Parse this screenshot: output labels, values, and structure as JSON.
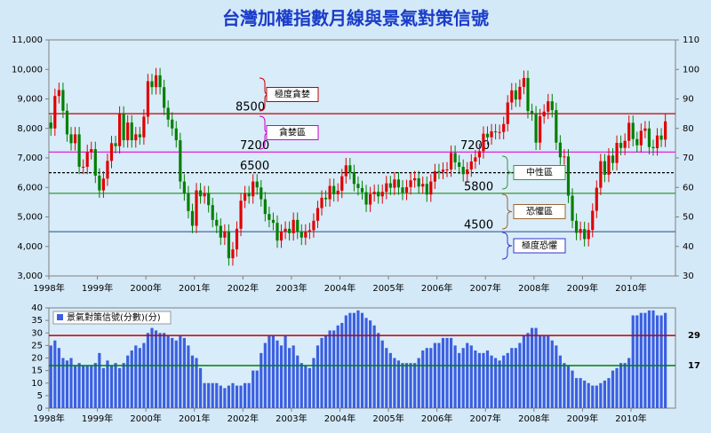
{
  "chart_data": [
    {
      "type": "candlestick",
      "title": "台灣加權指數月線與景氣對策信號",
      "open": [
        8200,
        8000,
        9100,
        9300,
        8600,
        7800,
        7500,
        7800,
        6700,
        6700,
        7200,
        7300,
        6400,
        5900,
        6300,
        6900,
        7500,
        7400,
        8500,
        7600,
        8200,
        7600,
        7800,
        7700,
        8400,
        9600,
        9400,
        9800,
        9400,
        8700,
        8300,
        8000,
        7600,
        6200,
        5800,
        5200,
        4700,
        5900,
        5700,
        5800,
        5400,
        4900,
        4700,
        4300,
        4500,
        3600,
        3900,
        4600,
        5550,
        5800,
        5700,
        6200,
        6000,
        5600,
        5100,
        4900,
        4800,
        4200,
        4500,
        4600,
        4450,
        4900,
        4500,
        4300,
        4500,
        4550,
        4870,
        5300,
        5650,
        5600,
        6050,
        5770,
        5890,
        6380,
        6750,
        6520,
        6120,
        5980,
        5840,
        5420,
        5770,
        5850,
        5700,
        5850,
        6140,
        5990,
        6270,
        6000,
        5820,
        6010,
        6240,
        6310,
        6030,
        6120,
        5760,
        6200,
        6550,
        6530,
        6600,
        6610,
        7170,
        6850,
        6700,
        6450,
        6610,
        6880,
        7020,
        7230,
        7820,
        7700,
        7900,
        7880,
        7880,
        8150,
        8880,
        9290,
        8980,
        9410,
        9710,
        8590,
        8510,
        7520,
        8410,
        8570,
        8920,
        8620,
        7520,
        7020,
        7050,
        5720,
        4870,
        4460,
        4590,
        4250,
        4560,
        5210,
        5990,
        6890,
        6430,
        7080,
        6830,
        7510,
        7340,
        7580,
        8190,
        7640,
        7430,
        7920,
        8000,
        7370,
        7330,
        7760,
        7620
      ],
      "high": [
        8450,
        9350,
        9550,
        9550,
        8850,
        8050,
        8050,
        8050,
        6950,
        7450,
        7550,
        7550,
        6650,
        6550,
        7150,
        7750,
        7750,
        8750,
        8750,
        8450,
        8450,
        8050,
        8050,
        8650,
        9850,
        9850,
        10050,
        10050,
        9650,
        8950,
        8550,
        8250,
        7850,
        6450,
        6050,
        5450,
        6150,
        6150,
        6050,
        6050,
        5650,
        5150,
        4950,
        4750,
        4750,
        4150,
        4850,
        5800,
        6050,
        6050,
        6450,
        6450,
        6250,
        5850,
        5350,
        5150,
        5050,
        4750,
        4850,
        4850,
        5150,
        5150,
        4750,
        4750,
        4800,
        5120,
        5550,
        5900,
        5900,
        6300,
        6300,
        6140,
        6630,
        7000,
        7000,
        6770,
        6370,
        6230,
        6090,
        6020,
        6100,
        6100,
        6100,
        6390,
        6390,
        6520,
        6520,
        6250,
        6260,
        6490,
        6560,
        6560,
        6370,
        6370,
        6450,
        6800,
        6800,
        6850,
        6860,
        7420,
        7420,
        7100,
        6950,
        6860,
        7130,
        7270,
        7480,
        8070,
        8070,
        8150,
        8150,
        8130,
        8400,
        9130,
        9540,
        9540,
        9660,
        9960,
        9960,
        8840,
        8760,
        8660,
        8820,
        9170,
        9170,
        8870,
        7770,
        7300,
        7300,
        5970,
        5120,
        4840,
        4840,
        4810,
        5460,
        6240,
        7140,
        7140,
        7330,
        7330,
        7760,
        7760,
        7830,
        8440,
        8440,
        7890,
        8170,
        8250,
        8250,
        7620,
        8010,
        8010,
        8490
      ],
      "low": [
        7750,
        7750,
        8850,
        8350,
        7550,
        7250,
        7250,
        6450,
        6450,
        6450,
        6950,
        6150,
        5650,
        5650,
        6050,
        6650,
        7150,
        7150,
        7350,
        7350,
        7350,
        7350,
        7450,
        7450,
        8150,
        9150,
        9150,
        9150,
        8450,
        8050,
        7750,
        7350,
        5950,
        5550,
        4950,
        4450,
        4450,
        5450,
        5450,
        5150,
        4650,
        4450,
        4050,
        4050,
        3350,
        3350,
        3650,
        4350,
        5300,
        5450,
        5450,
        5750,
        5350,
        4850,
        4650,
        4550,
        3950,
        3950,
        4250,
        4200,
        4200,
        4250,
        4050,
        4050,
        4250,
        4300,
        4620,
        5050,
        5350,
        5350,
        5520,
        5520,
        5640,
        6130,
        6270,
        5870,
        5730,
        5590,
        5170,
        5170,
        5520,
        5450,
        5450,
        5600,
        5740,
        5740,
        5750,
        5570,
        5570,
        5760,
        5990,
        5780,
        5780,
        5510,
        5510,
        5950,
        6280,
        6280,
        6350,
        6360,
        6600,
        6450,
        6200,
        6200,
        6360,
        6630,
        6770,
        6980,
        7450,
        7450,
        7630,
        7630,
        7630,
        7900,
        8630,
        8730,
        8730,
        9160,
        8340,
        8260,
        7270,
        7270,
        8160,
        8320,
        8370,
        7270,
        6770,
        6770,
        5470,
        4620,
        4210,
        4210,
        4000,
        4000,
        4310,
        4960,
        5740,
        6180,
        6180,
        6580,
        6580,
        7090,
        7090,
        7330,
        7390,
        7180,
        7180,
        7670,
        7120,
        7080,
        7080,
        7370,
        7370
      ],
      "close": [
        8000,
        9100,
        9300,
        8600,
        7800,
        7500,
        7800,
        6700,
        6700,
        7200,
        7300,
        6400,
        5900,
        6300,
        6900,
        7500,
        7400,
        8500,
        7600,
        8200,
        7600,
        7800,
        7700,
        8400,
        9600,
        9400,
        9800,
        9400,
        8700,
        8300,
        8000,
        7600,
        6200,
        5800,
        5200,
        4700,
        5900,
        5700,
        5800,
        5400,
        4900,
        4700,
        4300,
        4500,
        3600,
        3900,
        4600,
        5550,
        5800,
        5700,
        6200,
        6000,
        5600,
        5100,
        4900,
        4800,
        4200,
        4500,
        4600,
        4450,
        4900,
        4500,
        4300,
        4500,
        4550,
        4870,
        5300,
        5650,
        5600,
        6050,
        5770,
        5890,
        6380,
        6750,
        6520,
        6120,
        5980,
        5840,
        5420,
        5770,
        5850,
        5700,
        5850,
        6140,
        5990,
        6270,
        6000,
        5820,
        6010,
        6240,
        6310,
        6030,
        6120,
        5760,
        6200,
        6550,
        6530,
        6600,
        6610,
        7170,
        6850,
        6700,
        6450,
        6610,
        6880,
        7020,
        7230,
        7820,
        7700,
        7900,
        7880,
        7880,
        8150,
        8880,
        9290,
        8980,
        9410,
        9710,
        8590,
        8510,
        7520,
        8410,
        8570,
        8920,
        8620,
        7520,
        7020,
        7050,
        5720,
        4870,
        4460,
        4590,
        4250,
        4560,
        5210,
        5990,
        6890,
        6430,
        7080,
        6830,
        7510,
        7340,
        7580,
        8190,
        7640,
        7430,
        7920,
        8000,
        7370,
        7330,
        7760,
        7620,
        8240
      ],
      "up_color": "#e00000",
      "down_color": "#008000",
      "xlim": [
        0,
        155
      ],
      "xticks": [
        {
          "value": 0,
          "label": "1998年"
        },
        {
          "value": 12,
          "label": "1999年"
        },
        {
          "value": 24,
          "label": "2000年"
        },
        {
          "value": 36,
          "label": "2001年"
        },
        {
          "value": 48,
          "label": "2002年"
        },
        {
          "value": 60,
          "label": "2003年"
        },
        {
          "value": 72,
          "label": "2004年"
        },
        {
          "value": 84,
          "label": "2005年"
        },
        {
          "value": 96,
          "label": "2006年"
        },
        {
          "value": 108,
          "label": "2007年"
        },
        {
          "value": 120,
          "label": "2008年"
        },
        {
          "value": 132,
          "label": "2009年"
        },
        {
          "value": 144,
          "label": "2010年"
        }
      ],
      "ylim": [
        3000,
        11000
      ],
      "yticks": [
        {
          "value": 3000,
          "label": "3,000"
        },
        {
          "value": 4000,
          "label": "4,000"
        },
        {
          "value": 5000,
          "label": "5,000"
        },
        {
          "value": 6000,
          "label": "6,000"
        },
        {
          "value": 7000,
          "label": "7,000"
        },
        {
          "value": 8000,
          "label": "8,000"
        },
        {
          "value": 9000,
          "label": "9,000"
        },
        {
          "value": 10000,
          "label": "10,000"
        },
        {
          "value": 11000,
          "label": "11,000"
        }
      ],
      "y2lim": [
        30,
        110
      ],
      "y2ticks": [
        30,
        40,
        50,
        60,
        70,
        80,
        90,
        100,
        110
      ],
      "reference_lines": [
        {
          "value": 8500,
          "color": "#c00000",
          "style": "solid"
        },
        {
          "value": 7200,
          "color": "#e020e0",
          "style": "solid"
        },
        {
          "value": 6500,
          "color": "#000000",
          "style": "dashed"
        },
        {
          "value": 5800,
          "color": "#339933",
          "style": "solid"
        },
        {
          "value": 4500,
          "color": "#4a6a9a",
          "style": "solid"
        }
      ],
      "zones": [
        {
          "label": "極度貪婪",
          "color": "#c00000"
        },
        {
          "label": "貪婪區",
          "color": "#cc00cc"
        },
        {
          "label": "中性區",
          "color": "#339933"
        },
        {
          "label": "恐懼區",
          "color": "#996633"
        },
        {
          "label": "極度恐懼",
          "color": "#3333cc"
        }
      ]
    },
    {
      "type": "bar",
      "series": [
        {
          "name": "景氣對策信號(分數)(分)",
          "color": "#3b5fe0",
          "values": [
            25,
            27,
            24,
            20,
            19,
            20,
            17,
            18,
            17,
            17,
            17,
            18,
            22,
            16,
            19,
            17,
            18,
            16,
            18,
            21,
            23,
            25,
            24,
            26,
            30,
            32,
            31,
            30,
            30,
            29,
            28,
            27,
            29,
            28,
            25,
            21,
            20,
            16,
            10,
            10,
            10,
            10,
            9,
            8,
            9,
            10,
            9,
            9,
            10,
            10,
            15,
            15,
            22,
            26,
            29,
            29,
            27,
            25,
            29,
            24,
            25,
            21,
            18,
            17,
            16,
            20,
            25,
            28,
            29,
            31,
            31,
            33,
            34,
            37,
            38,
            38,
            39,
            38,
            36,
            35,
            33,
            30,
            27,
            24,
            22,
            20,
            19,
            18,
            18,
            18,
            18,
            20,
            23,
            24,
            24,
            26,
            26,
            28,
            28,
            28,
            25,
            22,
            24,
            26,
            25,
            23,
            22,
            22,
            23,
            21,
            20,
            19,
            21,
            22,
            24,
            24,
            26,
            29,
            30,
            32,
            32,
            29,
            29,
            29,
            27,
            25,
            21,
            18,
            17,
            15,
            12,
            12,
            11,
            10,
            9,
            9,
            10,
            11,
            12,
            15,
            16,
            18,
            18,
            20,
            37,
            37,
            38,
            38,
            39,
            39,
            37,
            37,
            38
          ]
        }
      ],
      "xlim": [
        0,
        155
      ],
      "xticks": [
        {
          "value": 0,
          "label": "1998年"
        },
        {
          "value": 12,
          "label": "1999年"
        },
        {
          "value": 24,
          "label": "2000年"
        },
        {
          "value": 36,
          "label": "2001年"
        },
        {
          "value": 48,
          "label": "2002年"
        },
        {
          "value": 60,
          "label": "2003年"
        },
        {
          "value": 72,
          "label": "2004年"
        },
        {
          "value": 84,
          "label": "2005年"
        },
        {
          "value": 96,
          "label": "2006年"
        },
        {
          "value": 108,
          "label": "2007年"
        },
        {
          "value": 120,
          "label": "2008年"
        },
        {
          "value": 132,
          "label": "2009年"
        },
        {
          "value": 144,
          "label": "2010年"
        }
      ],
      "ylim": [
        0,
        40
      ],
      "yticks": [
        0,
        5,
        10,
        15,
        20,
        25,
        30,
        35,
        40
      ],
      "reference_lines": [
        {
          "value": 29,
          "color": "#c00000"
        },
        {
          "value": 17,
          "color": "#008000"
        }
      ]
    }
  ]
}
